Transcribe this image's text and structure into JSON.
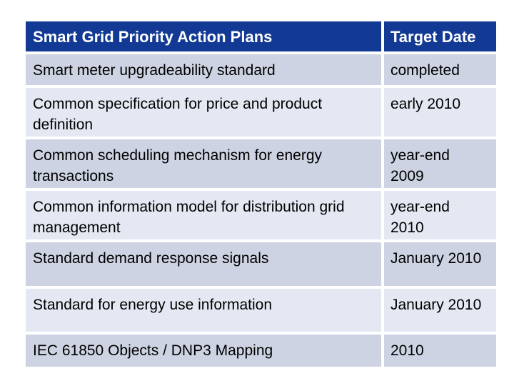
{
  "table": {
    "header": {
      "col1": "Smart Grid Priority Action Plans",
      "col2": "Target Date"
    },
    "rows": [
      {
        "plan": "Smart meter upgradeability standard",
        "date": "completed"
      },
      {
        "plan": "Common specification for price and product definition",
        "date": "early 2010"
      },
      {
        "plan": "Common scheduling mechanism for energy transactions",
        "date": "year-end\n2009"
      },
      {
        "plan": "Common information model for distribution grid management",
        "date": "year-end\n2010"
      },
      {
        "plan": "Standard demand response signals",
        "date": "January 2010"
      },
      {
        "plan": "Standard for energy use information",
        "date": "January 2010"
      },
      {
        "plan": "IEC 61850 Objects / DNP3 Mapping",
        "date": "2010"
      }
    ],
    "colors": {
      "header_bg": "#123A94",
      "header_text": "#FFFFFF",
      "band_dark": "#CDD3E2",
      "band_light": "#E3E8F2",
      "body_text": "#000000",
      "separator": "#FFFFFF"
    }
  }
}
